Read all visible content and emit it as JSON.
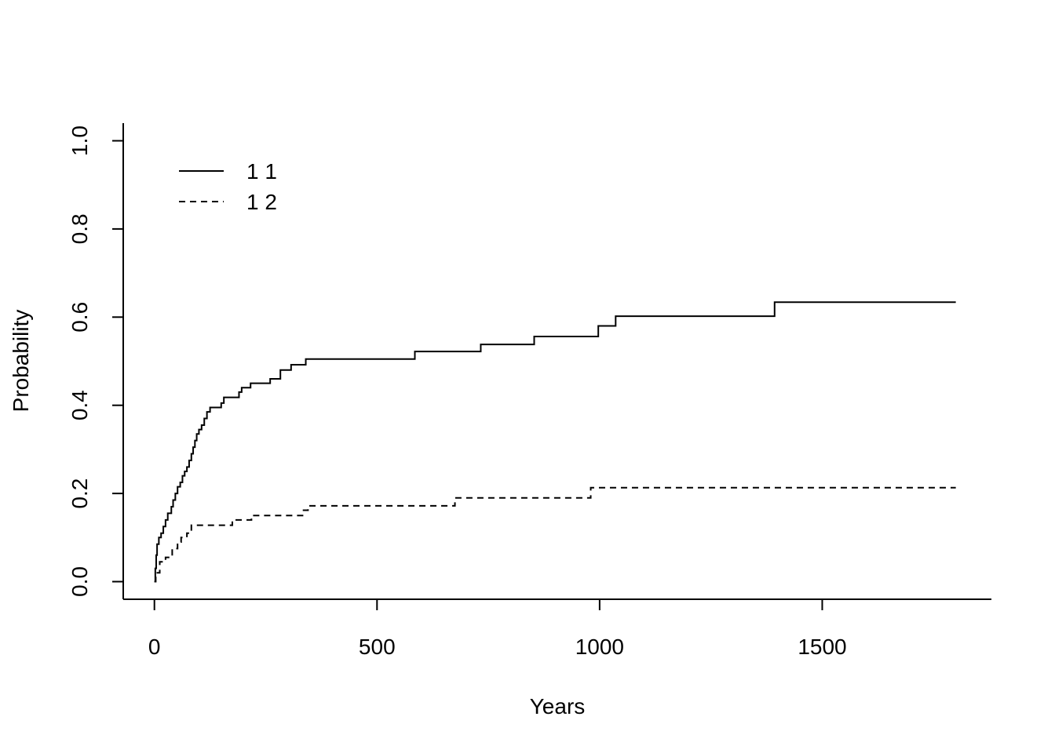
{
  "chart_data": {
    "type": "line",
    "title": "",
    "xlabel": "Years",
    "ylabel": "Probability",
    "xlim": [
      -70,
      1880
    ],
    "ylim": [
      -0.04,
      1.04
    ],
    "xticks": [
      0,
      500,
      1000,
      1500
    ],
    "xtick_labels": [
      "0",
      "500",
      "1000",
      "1500"
    ],
    "yticks": [
      0.0,
      0.2,
      0.4,
      0.6,
      0.8,
      1.0
    ],
    "ytick_labels": [
      "0.0",
      "0.2",
      "0.4",
      "0.6",
      "0.8",
      "1.0"
    ],
    "grid": false,
    "legend_position": "top-left",
    "step": true,
    "series": [
      {
        "name": "1 1",
        "line_style": "solid",
        "color": "#000000",
        "points": [
          [
            0,
            0.0
          ],
          [
            2,
            0.03
          ],
          [
            4,
            0.06
          ],
          [
            6,
            0.085
          ],
          [
            10,
            0.1
          ],
          [
            15,
            0.11
          ],
          [
            20,
            0.125
          ],
          [
            25,
            0.14
          ],
          [
            30,
            0.155
          ],
          [
            38,
            0.17
          ],
          [
            42,
            0.185
          ],
          [
            47,
            0.2
          ],
          [
            52,
            0.215
          ],
          [
            58,
            0.225
          ],
          [
            63,
            0.24
          ],
          [
            68,
            0.25
          ],
          [
            73,
            0.26
          ],
          [
            78,
            0.275
          ],
          [
            83,
            0.29
          ],
          [
            87,
            0.305
          ],
          [
            91,
            0.32
          ],
          [
            95,
            0.335
          ],
          [
            100,
            0.345
          ],
          [
            106,
            0.355
          ],
          [
            112,
            0.37
          ],
          [
            118,
            0.385
          ],
          [
            125,
            0.395
          ],
          [
            150,
            0.405
          ],
          [
            156,
            0.418
          ],
          [
            190,
            0.43
          ],
          [
            196,
            0.44
          ],
          [
            216,
            0.45
          ],
          [
            260,
            0.46
          ],
          [
            283,
            0.48
          ],
          [
            307,
            0.492
          ],
          [
            340,
            0.505
          ],
          [
            585,
            0.522
          ],
          [
            733,
            0.538
          ],
          [
            853,
            0.556
          ],
          [
            997,
            0.58
          ],
          [
            1036,
            0.602
          ],
          [
            1393,
            0.634
          ],
          [
            1800,
            0.634
          ]
        ]
      },
      {
        "name": "1 2",
        "line_style": "dashed",
        "color": "#000000",
        "points": [
          [
            0,
            0.0
          ],
          [
            3,
            0.02
          ],
          [
            12,
            0.045
          ],
          [
            25,
            0.055
          ],
          [
            40,
            0.075
          ],
          [
            52,
            0.09
          ],
          [
            60,
            0.1
          ],
          [
            73,
            0.11
          ],
          [
            83,
            0.128
          ],
          [
            175,
            0.14
          ],
          [
            218,
            0.15
          ],
          [
            335,
            0.162
          ],
          [
            345,
            0.172
          ],
          [
            675,
            0.19
          ],
          [
            980,
            0.213
          ],
          [
            1800,
            0.213
          ]
        ]
      }
    ]
  }
}
